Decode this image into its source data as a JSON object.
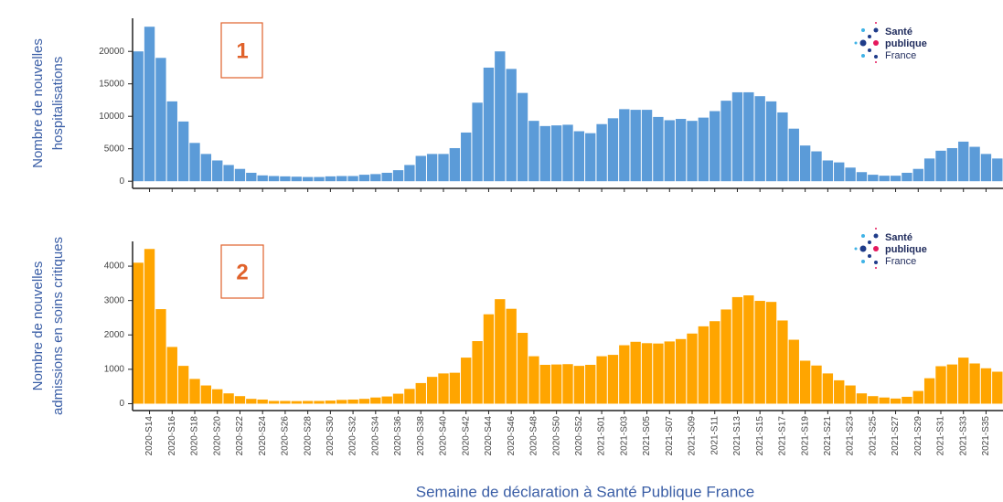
{
  "chart_data": [
    {
      "type": "bar",
      "ylabel": [
        "Nombre de nouvelles",
        "hospitalisations"
      ],
      "annotation": "1",
      "logo": [
        "Santé",
        "publique",
        "France"
      ],
      "color": "#5b9bd8",
      "categories": [
        null,
        "2020-S14",
        null,
        "2020-S16",
        null,
        "2020-S18",
        null,
        "2020-S20",
        null,
        "2020-S22",
        null,
        "2020-S24",
        null,
        "2020-S26",
        null,
        "2020-S28",
        null,
        "2020-S30",
        null,
        "2020-S32",
        null,
        "2020-S34",
        null,
        "2020-S36",
        null,
        "2020-S38",
        null,
        "2020-S40",
        null,
        "2020-S42",
        null,
        "2020-S44",
        null,
        "2020-S46",
        null,
        "2020-S48",
        null,
        "2020-S50",
        null,
        "2020-S52",
        null,
        "2021-S01",
        null,
        "2021-S03",
        null,
        "2021-S05",
        null,
        "2021-S07",
        null,
        "2021-S09",
        null,
        "2021-S11",
        null,
        "2021-S13",
        null,
        "2021-S15",
        null,
        "2021-S17",
        null,
        "2021-S19",
        null,
        "2021-S21",
        null,
        "2021-S23",
        null,
        "2021-S25",
        null,
        "2021-S27",
        null,
        "2021-S29",
        null,
        "2021-S31",
        null,
        "2021-S33",
        null,
        "2021-S35",
        null
      ],
      "values": [
        20000,
        23800,
        19000,
        12300,
        9200,
        5900,
        4200,
        3200,
        2500,
        1900,
        1300,
        900,
        800,
        750,
        700,
        650,
        650,
        750,
        800,
        800,
        1000,
        1100,
        1300,
        1700,
        2500,
        3900,
        4200,
        4200,
        5100,
        7500,
        12100,
        17500,
        20000,
        17300,
        13600,
        9300,
        8500,
        8600,
        8700,
        7700,
        7400,
        8800,
        9700,
        11100,
        11000,
        11000,
        9900,
        9400,
        9600,
        9300,
        9800,
        10800,
        12400,
        13700,
        13700,
        13100,
        12300,
        10600,
        8100,
        5500,
        4600,
        3200,
        2900,
        2100,
        1400,
        1000,
        850,
        850,
        1300,
        1900,
        3500,
        4700,
        5100,
        6100,
        5300,
        4200,
        3500
      ],
      "ylim": [
        -1100,
        25100
      ],
      "yticks": [
        0,
        5000,
        10000,
        15000,
        20000
      ]
    },
    {
      "type": "bar",
      "ylabel": [
        "Nombre de nouvelles",
        "admissions en soins critiques"
      ],
      "annotation": "2",
      "logo": [
        "Santé",
        "publique",
        "France"
      ],
      "color": "#ffa500",
      "xlabel": "Semaine de déclaration à Santé Publique France",
      "categories": [
        null,
        "2020-S14",
        null,
        "2020-S16",
        null,
        "2020-S18",
        null,
        "2020-S20",
        null,
        "2020-S22",
        null,
        "2020-S24",
        null,
        "2020-S26",
        null,
        "2020-S28",
        null,
        "2020-S30",
        null,
        "2020-S32",
        null,
        "2020-S34",
        null,
        "2020-S36",
        null,
        "2020-S38",
        null,
        "2020-S40",
        null,
        "2020-S42",
        null,
        "2020-S44",
        null,
        "2020-S46",
        null,
        "2020-S48",
        null,
        "2020-S50",
        null,
        "2020-S52",
        null,
        "2021-S01",
        null,
        "2021-S03",
        null,
        "2021-S05",
        null,
        "2021-S07",
        null,
        "2021-S09",
        null,
        "2021-S11",
        null,
        "2021-S13",
        null,
        "2021-S15",
        null,
        "2021-S17",
        null,
        "2021-S19",
        null,
        "2021-S21",
        null,
        "2021-S23",
        null,
        "2021-S25",
        null,
        "2021-S27",
        null,
        "2021-S29",
        null,
        "2021-S31",
        null,
        "2021-S33",
        null,
        "2021-S35",
        null
      ],
      "values": [
        4100,
        4500,
        2750,
        1650,
        1100,
        720,
        530,
        420,
        300,
        220,
        140,
        120,
        80,
        80,
        75,
        80,
        80,
        90,
        110,
        120,
        140,
        180,
        210,
        290,
        430,
        600,
        780,
        880,
        900,
        1340,
        1820,
        2600,
        3040,
        2760,
        2060,
        1380,
        1130,
        1140,
        1150,
        1100,
        1130,
        1380,
        1420,
        1700,
        1800,
        1760,
        1750,
        1810,
        1880,
        2040,
        2250,
        2400,
        2740,
        3100,
        3150,
        2990,
        2960,
        2420,
        1860,
        1250,
        1110,
        880,
        680,
        530,
        300,
        220,
        180,
        150,
        200,
        370,
        740,
        1090,
        1140,
        1340,
        1170,
        1030,
        930
      ],
      "ylim": [
        -200,
        4720
      ],
      "yticks": [
        0,
        1000,
        2000,
        3000,
        4000
      ]
    }
  ]
}
